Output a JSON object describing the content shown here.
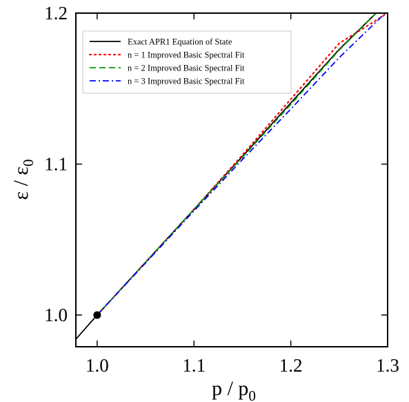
{
  "chart_data": {
    "type": "line",
    "title": "",
    "xlabel": "p / p",
    "xlabel_sub": "0",
    "ylabel": "ε / ε",
    "ylabel_sub": "0",
    "xlim": [
      0.978,
      1.3
    ],
    "ylim": [
      0.979,
      1.2
    ],
    "xticks": [
      1.0,
      1.1,
      1.2,
      1.3
    ],
    "xtick_labels": [
      "1.0",
      "1.1",
      "1.2",
      "1.3"
    ],
    "yticks": [
      1.0,
      1.1,
      1.2
    ],
    "ytick_labels": [
      "1.0",
      "1.1",
      "1.2"
    ],
    "grid": false,
    "legend_position": "top-left",
    "marker_point": {
      "x": 1.0,
      "y": 1.0,
      "color": "#000000"
    },
    "series": [
      {
        "name": "Exact APR1 Equation of State",
        "color": "#000000",
        "dash": "solid",
        "x": [
          0.978,
          1.0,
          1.05,
          1.1,
          1.15,
          1.2,
          1.25,
          1.3
        ],
        "y": [
          0.984,
          1.0,
          1.035,
          1.07,
          1.105,
          1.1405,
          1.176,
          1.2075
        ]
      },
      {
        "name": "n = 1 Improved Basic Spectral Fit",
        "color": "#ff0000",
        "dash": "dotted",
        "x": [
          1.0,
          1.05,
          1.1,
          1.15,
          1.2,
          1.25,
          1.3
        ],
        "y": [
          1.0,
          1.035,
          1.07,
          1.106,
          1.143,
          1.18,
          1.2
        ]
      },
      {
        "name": "n = 2 Improved Basic Spectral Fit",
        "color": "#009900",
        "dash": "dashed",
        "x": [
          1.0,
          1.05,
          1.1,
          1.15,
          1.2,
          1.25,
          1.3
        ],
        "y": [
          1.0,
          1.035,
          1.07,
          1.1045,
          1.1395,
          1.1755,
          1.2075
        ]
      },
      {
        "name": "n = 3 Improved Basic Spectral Fit",
        "color": "#0000ff",
        "dash": "dashdot",
        "x": [
          1.0,
          1.05,
          1.1,
          1.15,
          1.2,
          1.25,
          1.3
        ],
        "y": [
          1.0,
          1.0345,
          1.069,
          1.103,
          1.1365,
          1.1705,
          1.2015
        ]
      }
    ]
  }
}
